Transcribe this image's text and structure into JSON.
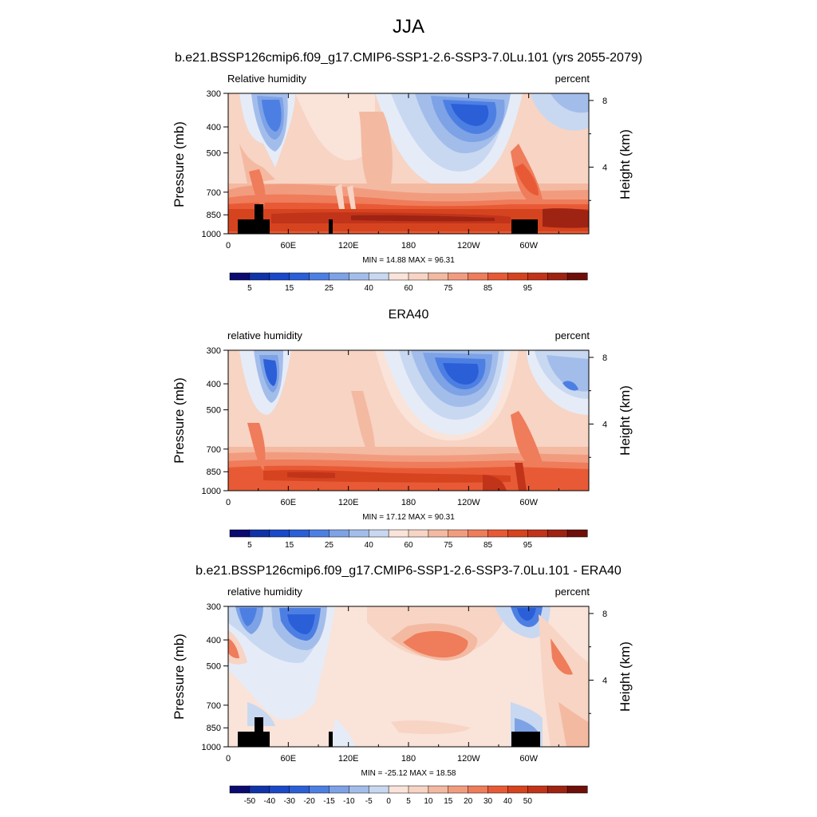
{
  "figure": {
    "main_title": "JJA",
    "lbar_levels_abs": [
      "5",
      "15",
      "25",
      "40",
      "60",
      "75",
      "85",
      "95"
    ],
    "lbar_levels_diff": [
      "-50",
      "-40",
      "-30",
      "-20",
      "-15",
      "-10",
      "-5",
      "0",
      "5",
      "10",
      "15",
      "20",
      "30",
      "40",
      "50"
    ]
  },
  "chart_data": [
    {
      "type": "heatmap",
      "title": "b.e21.BSSP126cmip6.f09_g17.CMIP6-SSP1-2.6-SSP3-7.0Lu.101 (yrs 2055-2079)",
      "left_string": "Relative humidity",
      "right_string": "percent",
      "ylabel": "Pressure (mb)",
      "ylabel_right": "Height (km)",
      "x_ticks": [
        "0",
        "60E",
        "120E",
        "180",
        "120W",
        "60W"
      ],
      "y_ticks": [
        "300",
        "400",
        "500",
        "700",
        "850",
        "1000"
      ],
      "y_right_ticks": [
        "8",
        "4"
      ],
      "min_max": "MIN =  14.88  MAX =  96.31",
      "colorbar": [
        "5",
        "15",
        "25",
        "40",
        "60",
        "75",
        "85",
        "95"
      ]
    },
    {
      "type": "heatmap",
      "title": "ERA40",
      "left_string": "relative humidity",
      "right_string": "percent",
      "ylabel": "Pressure (mb)",
      "ylabel_right": "Height (km)",
      "x_ticks": [
        "0",
        "60E",
        "120E",
        "180",
        "120W",
        "60W"
      ],
      "y_ticks": [
        "300",
        "400",
        "500",
        "700",
        "850",
        "1000"
      ],
      "y_right_ticks": [
        "8",
        "4"
      ],
      "min_max": "MIN =  17.12  MAX =  90.31",
      "colorbar": [
        "5",
        "15",
        "25",
        "40",
        "60",
        "75",
        "85",
        "95"
      ]
    },
    {
      "type": "heatmap",
      "title": "b.e21.BSSP126cmip6.f09_g17.CMIP6-SSP1-2.6-SSP3-7.0Lu.101 - ERA40",
      "left_string": "relative humidity",
      "right_string": "percent",
      "ylabel": "Pressure (mb)",
      "ylabel_right": "Height (km)",
      "x_ticks": [
        "0",
        "60E",
        "120E",
        "180",
        "120W",
        "60W"
      ],
      "y_ticks": [
        "300",
        "400",
        "500",
        "700",
        "850",
        "1000"
      ],
      "y_right_ticks": [
        "8",
        "4"
      ],
      "min_max": "MIN = -25.12  MAX =  18.58",
      "colorbar": [
        "-50",
        "-40",
        "-30",
        "-20",
        "-15",
        "-10",
        "-5",
        "0",
        "5",
        "10",
        "15",
        "20",
        "30",
        "40",
        "50"
      ]
    }
  ]
}
